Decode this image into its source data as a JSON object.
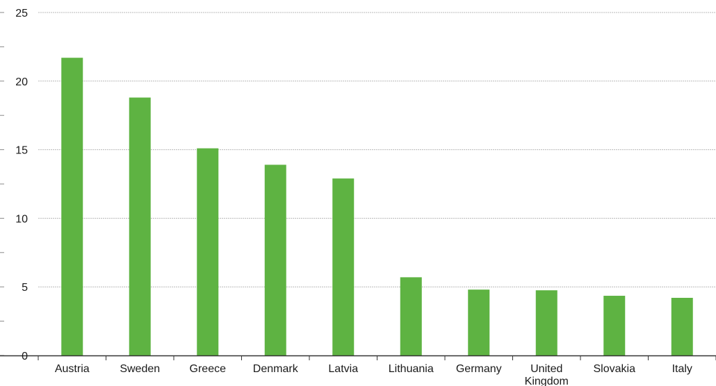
{
  "chart_data": {
    "type": "bar",
    "title": "",
    "xlabel": "",
    "ylabel": "",
    "categories": [
      "Austria",
      "Sweden",
      "Greece",
      "Denmark",
      "Latvia",
      "Lithuania",
      "Germany",
      "United Kingdom",
      "Slovakia",
      "Italy"
    ],
    "category_lines": [
      [
        "Austria"
      ],
      [
        "Sweden"
      ],
      [
        "Greece"
      ],
      [
        "Denmark"
      ],
      [
        "Latvia"
      ],
      [
        "Lithuania"
      ],
      [
        "Germany"
      ],
      [
        "United",
        "Kingdom"
      ],
      [
        "Slovakia"
      ],
      [
        "Italy"
      ]
    ],
    "values": [
      21.7,
      18.8,
      15.1,
      13.9,
      12.9,
      5.7,
      4.8,
      4.75,
      4.35,
      4.2
    ],
    "ylim": [
      0,
      25
    ],
    "yticks": [
      0,
      5,
      10,
      15,
      20,
      25
    ],
    "grid": true,
    "legend": "none",
    "bar_color": "#5eb342",
    "grid_color": "#b8b8b8",
    "axis_color": "#333333"
  }
}
